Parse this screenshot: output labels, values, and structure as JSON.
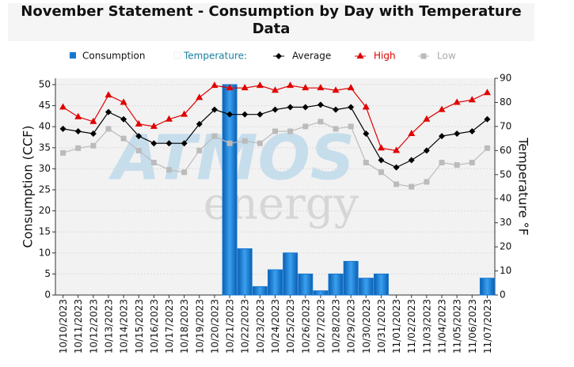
{
  "chart_data": {
    "type": "bar",
    "title": "November Statement - Consumption by Day with Temperature Data",
    "y_label": "Consumption (CCF)",
    "y2_label": "Temperature °F",
    "legend_group": "Temperature:",
    "watermark": [
      "ATMOS",
      "energy"
    ],
    "categories": [
      "10/10/2023",
      "10/11/2023",
      "10/12/2023",
      "10/13/2023",
      "10/14/2023",
      "10/15/2023",
      "10/16/2023",
      "10/17/2023",
      "10/18/2023",
      "10/19/2023",
      "10/20/2023",
      "10/21/2023",
      "10/22/2023",
      "10/23/2023",
      "10/24/2023",
      "10/25/2023",
      "10/26/2023",
      "10/27/2023",
      "10/28/2023",
      "10/29/2023",
      "10/30/2023",
      "10/31/2023",
      "11/01/2023",
      "11/02/2023",
      "11/03/2023",
      "11/04/2023",
      "11/05/2023",
      "11/06/2023",
      "11/07/2023"
    ],
    "series": [
      {
        "name": "Consumption",
        "type": "bar",
        "color": "#1677d2",
        "values": [
          0,
          0,
          0,
          0,
          0,
          0,
          0,
          0,
          0,
          0,
          0,
          50,
          11,
          2,
          6,
          10,
          5,
          1,
          5,
          8,
          4,
          5,
          0,
          0,
          0,
          0,
          0,
          0,
          4
        ]
      },
      {
        "name": "Average",
        "type": "line",
        "marker": "diamond",
        "axis": "y2",
        "color": "#000000",
        "values": [
          69,
          68,
          67,
          76,
          73,
          66,
          63,
          63,
          63,
          71,
          77,
          75,
          75,
          75,
          77,
          78,
          78,
          79,
          77,
          78,
          67,
          56,
          53,
          56,
          60,
          66,
          67,
          68,
          73
        ]
      },
      {
        "name": "High",
        "type": "line",
        "marker": "triangle",
        "axis": "y2",
        "color": "#e00000",
        "values": [
          78,
          74,
          72,
          83,
          80,
          71,
          70,
          73,
          75,
          82,
          87,
          86,
          86,
          87,
          85,
          87,
          86,
          86,
          85,
          86,
          78,
          61,
          60,
          67,
          73,
          77,
          80,
          81,
          84
        ]
      },
      {
        "name": "Low",
        "type": "line",
        "marker": "square",
        "axis": "y2",
        "color": "#bbbbbb",
        "values": [
          59,
          61,
          62,
          69,
          65,
          60,
          55,
          52,
          51,
          60,
          66,
          63,
          64,
          63,
          68,
          68,
          70,
          72,
          69,
          70,
          55,
          51,
          46,
          45,
          47,
          55,
          54,
          55,
          61
        ]
      }
    ],
    "ylim": [
      0,
      51.5
    ],
    "yticks": [
      0,
      5,
      10,
      15,
      20,
      25,
      30,
      35,
      40,
      45,
      50
    ],
    "y2lim": [
      0,
      90
    ],
    "y2ticks": [
      0,
      10,
      20,
      30,
      40,
      50,
      60,
      70,
      80,
      90
    ],
    "grid": true
  }
}
